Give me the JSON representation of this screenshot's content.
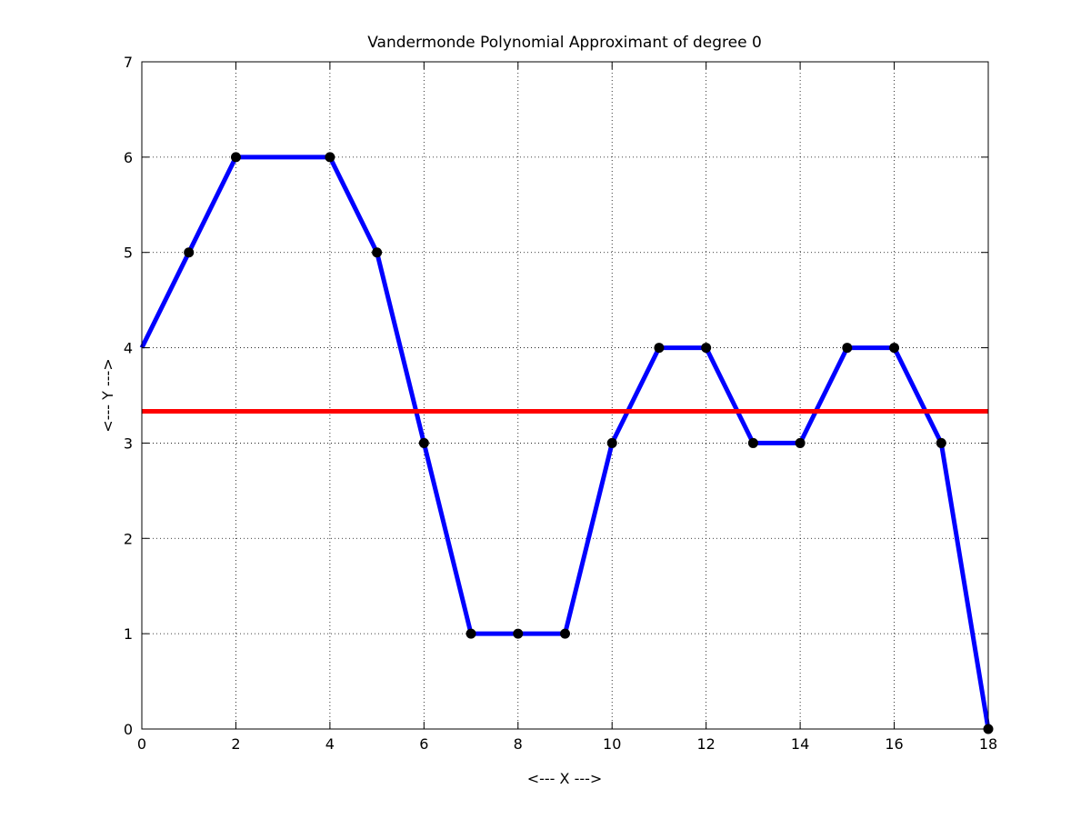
{
  "chart_data": {
    "type": "line",
    "title": "Vandermonde Polynomial Approximant of degree 0",
    "xlabel": "<--- X --->",
    "ylabel": "<--- Y --->",
    "xlim": [
      0,
      18
    ],
    "ylim": [
      0,
      7
    ],
    "xticks": [
      0,
      2,
      4,
      6,
      8,
      10,
      12,
      14,
      16,
      18
    ],
    "yticks": [
      0,
      1,
      2,
      3,
      4,
      5,
      6,
      7
    ],
    "grid": true,
    "series": [
      {
        "role": "data",
        "color": "#0000ff",
        "marker_color": "#000000",
        "x": [
          0,
          1,
          2,
          3,
          4,
          5,
          6,
          7,
          8,
          9,
          10,
          11,
          12,
          13,
          14,
          15,
          16,
          17,
          18
        ],
        "y": [
          4,
          5,
          6,
          6,
          6,
          5,
          3,
          1,
          1,
          1,
          3,
          4,
          4,
          3,
          3,
          4,
          4,
          3,
          0
        ],
        "marked_x": [
          1,
          2,
          4,
          5,
          6,
          7,
          8,
          9,
          10,
          11,
          12,
          13,
          14,
          15,
          16,
          17,
          18
        ]
      },
      {
        "role": "approximant",
        "color": "#ff0000",
        "x": [
          0,
          18
        ],
        "y": [
          3.3333,
          3.3333
        ]
      }
    ]
  }
}
